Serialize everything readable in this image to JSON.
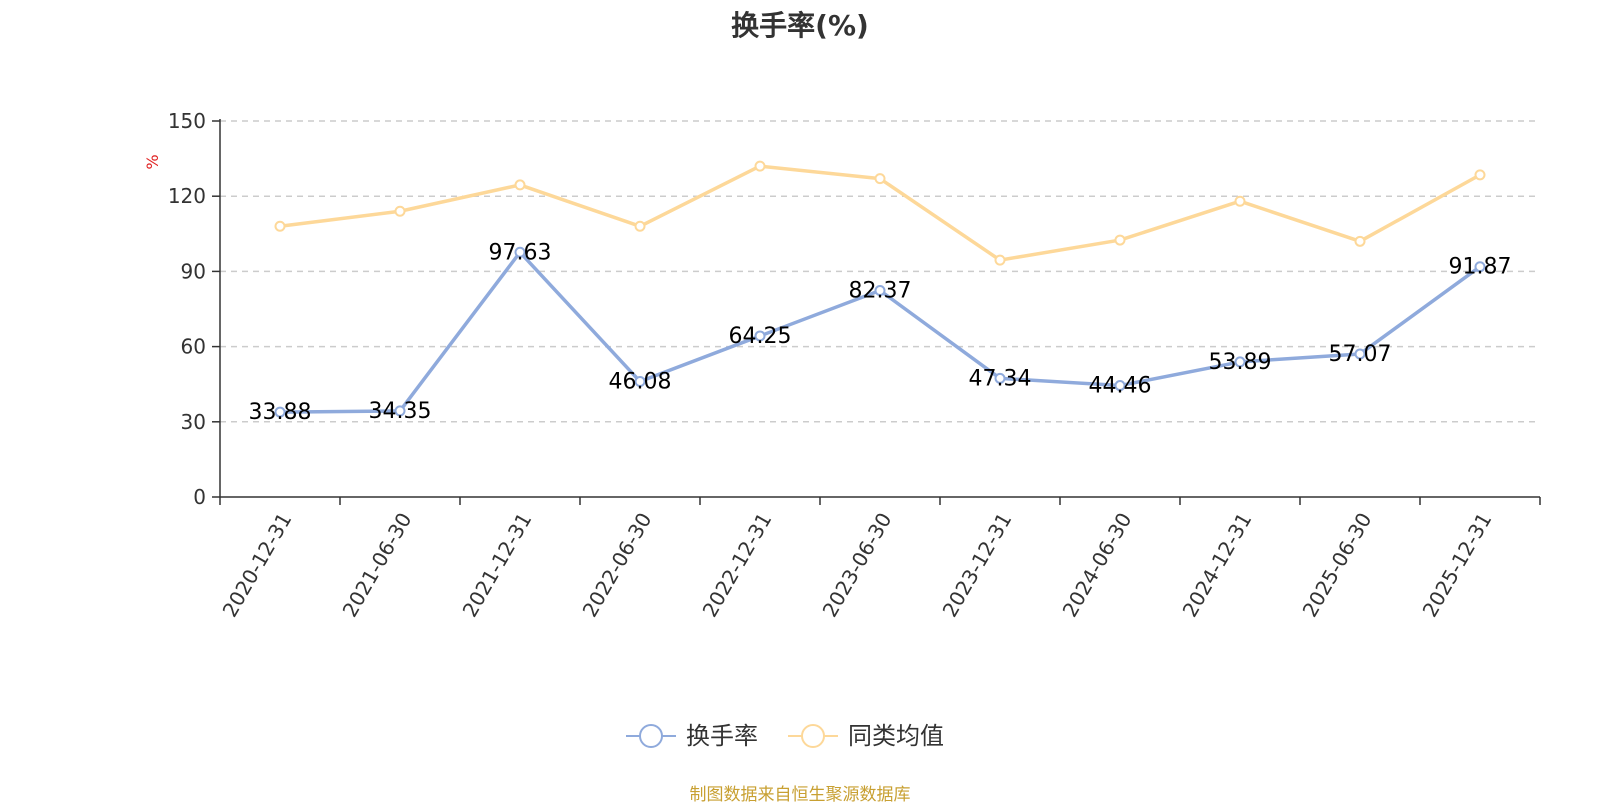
{
  "chart_data": {
    "type": "line",
    "title": "换手率(%)",
    "ylabel": "%",
    "xlabel": "",
    "ylim": [
      0,
      150
    ],
    "yticks": [
      0,
      30,
      60,
      90,
      120,
      150
    ],
    "categories": [
      "2020-12-31",
      "2021-06-30",
      "2021-12-31",
      "2022-06-30",
      "2022-12-31",
      "2023-06-30",
      "2023-12-31",
      "2024-06-30",
      "2024-12-31",
      "2025-06-30",
      "2025-12-31"
    ],
    "series": [
      {
        "name": "换手率",
        "color": "#8faadc",
        "show_labels": true,
        "values": [
          33.88,
          34.35,
          97.63,
          46.08,
          64.25,
          82.37,
          47.34,
          44.46,
          53.89,
          57.07,
          91.87
        ]
      },
      {
        "name": "同类均值",
        "color": "#fdd899",
        "show_labels": false,
        "values": [
          108,
          114,
          124.5,
          108,
          132,
          127,
          94.5,
          102.5,
          118,
          102,
          128.5
        ]
      }
    ],
    "grid": true,
    "legend_position": "bottom-center"
  },
  "footer": {
    "source": "制图数据来自恒生聚源数据库",
    "color": "#c8a032"
  },
  "ylabel_color": "#e02020"
}
